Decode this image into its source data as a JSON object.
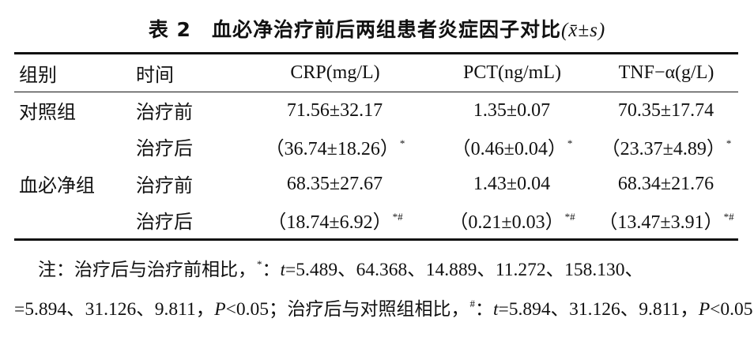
{
  "caption": {
    "number": "表 2",
    "title": "血必净治疗前后两组患者炎症因子对比",
    "stat": "(x̄±s)"
  },
  "table": {
    "headers": [
      "组别",
      "时间",
      "CRP(mg/L)",
      "PCT(ng/mL)",
      "TNF−α(g/L)"
    ],
    "rows": [
      {
        "group": "对照组",
        "time": "治疗前",
        "crp": "71.56±32.17",
        "pct": "1.35±0.07",
        "tnf": "70.35±17.74",
        "crp_mark": "",
        "pct_mark": "",
        "tnf_mark": ""
      },
      {
        "group": "",
        "time": "治疗后",
        "crp": "（36.74±18.26）",
        "pct": "（0.46±0.04）",
        "tnf": "（23.37±4.89）",
        "crp_mark": "*",
        "pct_mark": "*",
        "tnf_mark": "*"
      },
      {
        "group": "血必净组",
        "time": "治疗前",
        "crp": "68.35±27.67",
        "pct": "1.43±0.04",
        "tnf": "68.34±21.76",
        "crp_mark": "",
        "pct_mark": "",
        "tnf_mark": ""
      },
      {
        "group": "",
        "time": "治疗后",
        "crp": "（18.74±6.92）",
        "pct": "（0.21±0.03）",
        "tnf": "（13.47±3.91）",
        "crp_mark": "*#",
        "pct_mark": "*#",
        "tnf_mark": "*#"
      }
    ]
  },
  "note": {
    "line1_prefix": "注：治疗后与治疗前相比，",
    "line1_mark": "*",
    "line1_sep": "：",
    "line1_t": "t",
    "line1_values": "=5.489、64.368、14.889、11.272、158.130、",
    "line2_values": "=5.894、31.126、9.811，",
    "line2_p1": "P",
    "line2_p1_val": "<0.05；",
    "line2_mid": "治疗后与对照组相比，",
    "line2_mark": "#",
    "line2_sep": "：",
    "line2_t": "t",
    "line2_p2": "P",
    "line2_p2_val": "<0.05"
  }
}
